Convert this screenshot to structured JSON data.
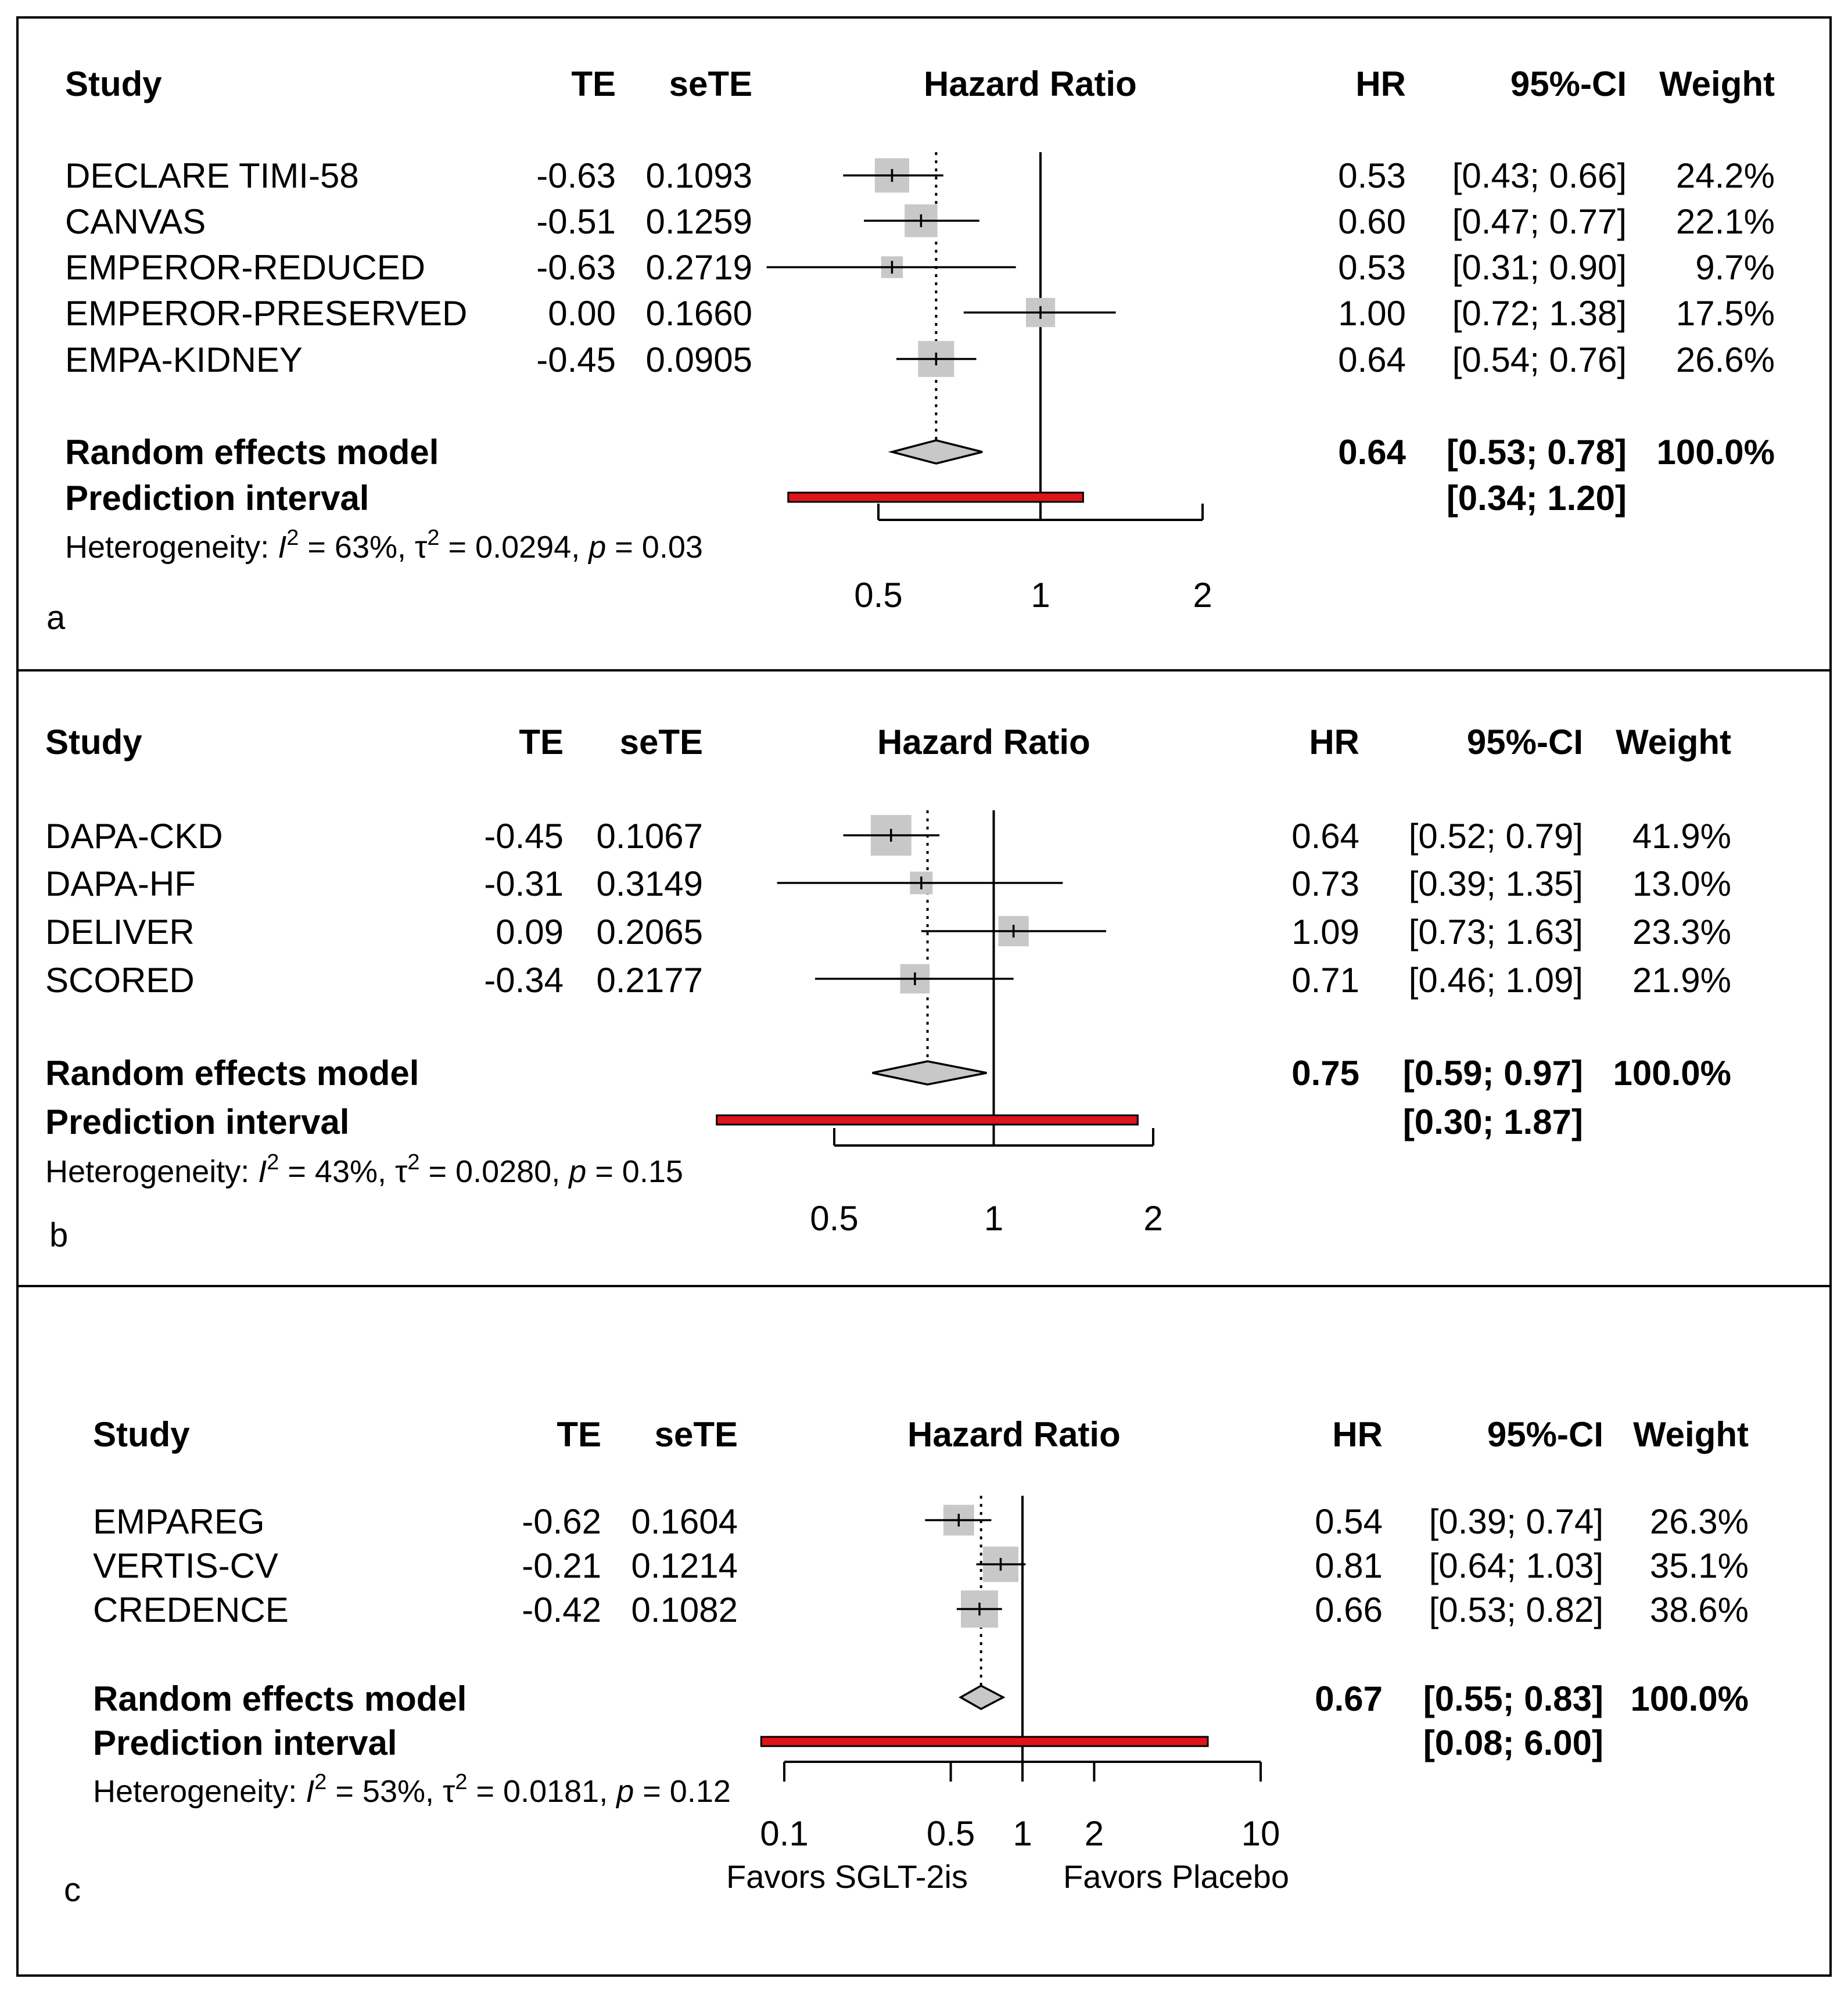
{
  "chart_data": [
    {
      "type": "forest",
      "panel_label": "a",
      "columns": {
        "study": "Study",
        "te": "TE",
        "sete": "seTE",
        "plot": "Hazard Ratio",
        "hr": "HR",
        "ci": "95%-CI",
        "weight": "Weight"
      },
      "studies": [
        {
          "name": "DECLARE TIMI-58",
          "te": "-0.63",
          "sete": "0.1093",
          "hr": 0.53,
          "lo": 0.43,
          "hi": 0.66,
          "hr_text": "0.53",
          "ci_text": "[0.43; 0.66]",
          "weight_pct": 24.2,
          "weight_text": "24.2%"
        },
        {
          "name": "CANVAS",
          "te": "-0.51",
          "sete": "0.1259",
          "hr": 0.6,
          "lo": 0.47,
          "hi": 0.77,
          "hr_text": "0.60",
          "ci_text": "[0.47; 0.77]",
          "weight_pct": 22.1,
          "weight_text": "22.1%"
        },
        {
          "name": "EMPEROR-REDUCED",
          "te": "-0.63",
          "sete": "0.2719",
          "hr": 0.53,
          "lo": 0.31,
          "hi": 0.9,
          "hr_text": "0.53",
          "ci_text": "[0.31; 0.90]",
          "weight_pct": 9.7,
          "weight_text": "9.7%"
        },
        {
          "name": "EMPEROR-PRESERVED",
          "te": "0.00",
          "sete": "0.1660",
          "hr": 1.0,
          "lo": 0.72,
          "hi": 1.38,
          "hr_text": "1.00",
          "ci_text": "[0.72; 1.38]",
          "weight_pct": 17.5,
          "weight_text": "17.5%"
        },
        {
          "name": "EMPA-KIDNEY",
          "te": "-0.45",
          "sete": "0.0905",
          "hr": 0.64,
          "lo": 0.54,
          "hi": 0.76,
          "hr_text": "0.64",
          "ci_text": "[0.54; 0.76]",
          "weight_pct": 26.6,
          "weight_text": "26.6%"
        }
      ],
      "pooled": {
        "label": "Random effects model",
        "hr": 0.64,
        "lo": 0.53,
        "hi": 0.78,
        "hr_text": "0.64",
        "ci_text": "[0.53; 0.78]",
        "weight_text": "100.0%"
      },
      "prediction": {
        "label": "Prediction interval",
        "lo": 0.34,
        "hi": 1.2,
        "ci_text": "[0.34; 1.20]"
      },
      "heterogeneity": {
        "prefix": "Heterogeneity: ",
        "i2": "I",
        "i2_value": " = 63%, ",
        "tau": "τ",
        "tau_value": " = 0.0294, ",
        "p": "p",
        "p_value": " = 0.03"
      },
      "x_axis": {
        "scale": "log",
        "range": [
          0.5,
          2
        ],
        "ticks": [
          0.5,
          1,
          2
        ],
        "tick_labels": [
          "0.5",
          "1",
          "2"
        ]
      },
      "favors": null,
      "colors": {
        "box": "#c8c8c8",
        "diamond": "#c8c8c8",
        "prediction": "#e0141b"
      }
    },
    {
      "type": "forest",
      "panel_label": "b",
      "columns": {
        "study": "Study",
        "te": "TE",
        "sete": "seTE",
        "plot": "Hazard Ratio",
        "hr": "HR",
        "ci": "95%-CI",
        "weight": "Weight"
      },
      "studies": [
        {
          "name": "DAPA-CKD",
          "te": "-0.45",
          "sete": "0.1067",
          "hr": 0.64,
          "lo": 0.52,
          "hi": 0.79,
          "hr_text": "0.64",
          "ci_text": "[0.52; 0.79]",
          "weight_pct": 41.9,
          "weight_text": "41.9%"
        },
        {
          "name": "DAPA-HF",
          "te": "-0.31",
          "sete": "0.3149",
          "hr": 0.73,
          "lo": 0.39,
          "hi": 1.35,
          "hr_text": "0.73",
          "ci_text": "[0.39; 1.35]",
          "weight_pct": 13.0,
          "weight_text": "13.0%"
        },
        {
          "name": "DELIVER",
          "te": "0.09",
          "sete": "0.2065",
          "hr": 1.09,
          "lo": 0.73,
          "hi": 1.63,
          "hr_text": "1.09",
          "ci_text": "[0.73; 1.63]",
          "weight_pct": 23.3,
          "weight_text": "23.3%"
        },
        {
          "name": "SCORED",
          "te": "-0.34",
          "sete": "0.2177",
          "hr": 0.71,
          "lo": 0.46,
          "hi": 1.09,
          "hr_text": "0.71",
          "ci_text": "[0.46; 1.09]",
          "weight_pct": 21.9,
          "weight_text": "21.9%"
        }
      ],
      "pooled": {
        "label": "Random effects model",
        "hr": 0.75,
        "lo": 0.59,
        "hi": 0.97,
        "hr_text": "0.75",
        "ci_text": "[0.59; 0.97]",
        "weight_text": "100.0%"
      },
      "prediction": {
        "label": "Prediction interval",
        "lo": 0.3,
        "hi": 1.87,
        "ci_text": "[0.30; 1.87]"
      },
      "heterogeneity": {
        "prefix": "Heterogeneity: ",
        "i2": "I",
        "i2_value": " = 43%, ",
        "tau": "τ",
        "tau_value": " = 0.0280, ",
        "p": "p",
        "p_value": " = 0.15"
      },
      "x_axis": {
        "scale": "log",
        "range": [
          0.5,
          2
        ],
        "ticks": [
          0.5,
          1,
          2
        ],
        "tick_labels": [
          "0.5",
          "1",
          "2"
        ]
      },
      "favors": null,
      "colors": {
        "box": "#c8c8c8",
        "diamond": "#c8c8c8",
        "prediction": "#e0141b"
      }
    },
    {
      "type": "forest",
      "panel_label": "c",
      "columns": {
        "study": "Study",
        "te": "TE",
        "sete": "seTE",
        "plot": "Hazard Ratio",
        "hr": "HR",
        "ci": "95%-CI",
        "weight": "Weight"
      },
      "studies": [
        {
          "name": "EMPAREG",
          "te": "-0.62",
          "sete": "0.1604",
          "hr": 0.54,
          "lo": 0.39,
          "hi": 0.74,
          "hr_text": "0.54",
          "ci_text": "[0.39; 0.74]",
          "weight_pct": 26.3,
          "weight_text": "26.3%"
        },
        {
          "name": "VERTIS-CV",
          "te": "-0.21",
          "sete": "0.1214",
          "hr": 0.81,
          "lo": 0.64,
          "hi": 1.03,
          "hr_text": "0.81",
          "ci_text": "[0.64; 1.03]",
          "weight_pct": 35.1,
          "weight_text": "35.1%"
        },
        {
          "name": "CREDENCE",
          "te": "-0.42",
          "sete": "0.1082",
          "hr": 0.66,
          "lo": 0.53,
          "hi": 0.82,
          "hr_text": "0.66",
          "ci_text": "[0.53; 0.82]",
          "weight_pct": 38.6,
          "weight_text": "38.6%"
        }
      ],
      "pooled": {
        "label": "Random effects model",
        "hr": 0.67,
        "lo": 0.55,
        "hi": 0.83,
        "hr_text": "0.67",
        "ci_text": "[0.55; 0.83]",
        "weight_text": "100.0%"
      },
      "prediction": {
        "label": "Prediction interval",
        "lo": 0.08,
        "hi": 6.0,
        "ci_text": "[0.08; 6.00]"
      },
      "heterogeneity": {
        "prefix": "Heterogeneity: ",
        "i2": "I",
        "i2_value": " = 53%, ",
        "tau": "τ",
        "tau_value": " = 0.0181, ",
        "p": "p",
        "p_value": " = 0.12"
      },
      "x_axis": {
        "scale": "log",
        "range": [
          0.1,
          10
        ],
        "ticks": [
          0.1,
          0.5,
          1,
          2,
          10
        ],
        "tick_labels": [
          "0.1",
          "0.5",
          "1",
          "2",
          "10"
        ]
      },
      "favors": {
        "left": "Favors SGLT-2is",
        "right": "Favors Placebo"
      },
      "colors": {
        "box": "#c8c8c8",
        "diamond": "#c8c8c8",
        "prediction": "#e0141b"
      }
    }
  ]
}
